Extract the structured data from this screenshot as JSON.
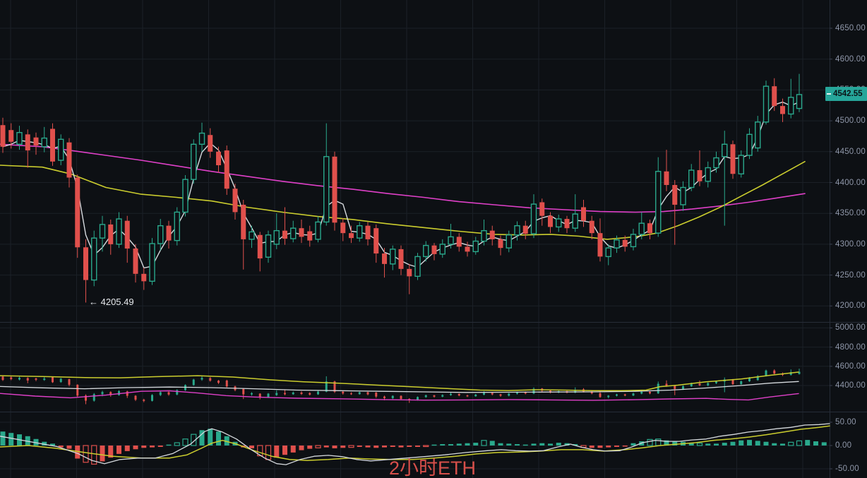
{
  "overlays": {
    "watermark": "2小时ETH",
    "low_annotation": "← 4205.49",
    "last_price": "4542.55"
  },
  "colors": {
    "background": "#0d1014",
    "grid": "#1b2027",
    "separator": "#262c37",
    "axis_line": "#262c37",
    "axis_text": "#8f97a9",
    "up": "#2aa98c",
    "down": "#e0504c",
    "ma_white": "#d6dade",
    "ma_yellow": "#cbcd2e",
    "ma_magenta": "#df40c8",
    "price_label_bg": "#26a69a",
    "price_label_text": "#0a1517",
    "watermark": "#e2534d",
    "annotation": "#e6e9ed"
  },
  "chart_data": {
    "type": "candlestick-multi-pane",
    "title": "2小时ETH",
    "timeframe": "2h",
    "symbol": "ETH",
    "last_price": 4542.55,
    "low_annotation_price": 4205.49,
    "panels": [
      {
        "name": "price",
        "ticks": [
          [
            4650,
            "4650.00"
          ],
          [
            4600,
            "4600.00"
          ],
          [
            4550,
            "4550.00"
          ],
          [
            4500,
            "4500.00"
          ],
          [
            4450,
            "4450.00"
          ],
          [
            4400,
            "4400.00"
          ],
          [
            4350,
            "4350.00"
          ],
          [
            4300,
            "4300.00"
          ],
          [
            4250,
            "4250.00"
          ],
          [
            4200,
            "4200.00"
          ]
        ]
      },
      {
        "name": "compressed-price",
        "ticks": [
          [
            5000,
            "5000.00"
          ],
          [
            4800,
            "4800.00"
          ],
          [
            4600,
            "4600.00"
          ],
          [
            4400,
            "4400.00"
          ]
        ]
      },
      {
        "name": "macd",
        "ticks": [
          [
            50,
            "50.00"
          ],
          [
            0,
            "0.00"
          ],
          [
            -50,
            "-50.00"
          ]
        ]
      }
    ],
    "candles_ohlc": [
      [
        4493,
        4505,
        4448,
        4458
      ],
      [
        4485,
        4496,
        4455,
        4466
      ],
      [
        4462,
        4492,
        4453,
        4481
      ],
      [
        4478,
        4486,
        4424,
        4452
      ],
      [
        4473,
        4481,
        4445,
        4460
      ],
      [
        4458,
        4490,
        4449,
        4472
      ],
      [
        4487,
        4496,
        4427,
        4434
      ],
      [
        4436,
        4478,
        4428,
        4470
      ],
      [
        4465,
        4472,
        4392,
        4408
      ],
      [
        4408,
        4413,
        4278,
        4295
      ],
      [
        4295,
        4308,
        4205.49,
        4242
      ],
      [
        4242,
        4322,
        4232,
        4310
      ],
      [
        4310,
        4346,
        4288,
        4332
      ],
      [
        4332,
        4340,
        4283,
        4300
      ],
      [
        4300,
        4352,
        4294,
        4341
      ],
      [
        4338,
        4346,
        4270,
        4293
      ],
      [
        4293,
        4300,
        4238,
        4252
      ],
      [
        4252,
        4262,
        4226,
        4240
      ],
      [
        4240,
        4310,
        4234,
        4301
      ],
      [
        4301,
        4341,
        4290,
        4330
      ],
      [
        4330,
        4338,
        4293,
        4306
      ],
      [
        4306,
        4360,
        4298,
        4352
      ],
      [
        4352,
        4412,
        4345,
        4405
      ],
      [
        4405,
        4470,
        4398,
        4462
      ],
      [
        4462,
        4497,
        4450,
        4480
      ],
      [
        4477,
        4488,
        4440,
        4450
      ],
      [
        4450,
        4458,
        4416,
        4428
      ],
      [
        4452,
        4460,
        4380,
        4390
      ],
      [
        4390,
        4398,
        4340,
        4352
      ],
      [
        4364,
        4372,
        4259,
        4308
      ],
      [
        4308,
        4330,
        4294,
        4320
      ],
      [
        4315,
        4320,
        4256,
        4277
      ],
      [
        4279,
        4322,
        4270,
        4315
      ],
      [
        4300,
        4350,
        4292,
        4322
      ],
      [
        4322,
        4360,
        4299,
        4309
      ],
      [
        4309,
        4338,
        4303,
        4326
      ],
      [
        4326,
        4340,
        4302,
        4312
      ],
      [
        4321,
        4330,
        4296,
        4306
      ],
      [
        4308,
        4345,
        4303,
        4336
      ],
      [
        4336,
        4496,
        4330,
        4442
      ],
      [
        4442,
        4450,
        4322,
        4335
      ],
      [
        4335,
        4342,
        4305,
        4318
      ],
      [
        4318,
        4330,
        4302,
        4310
      ],
      [
        4310,
        4336,
        4304,
        4330
      ],
      [
        4330,
        4336,
        4298,
        4308
      ],
      [
        4326,
        4332,
        4270,
        4285
      ],
      [
        4285,
        4294,
        4246,
        4268
      ],
      [
        4268,
        4298,
        4258,
        4292
      ],
      [
        4292,
        4298,
        4250,
        4260
      ],
      [
        4260,
        4268,
        4219,
        4248
      ],
      [
        4248,
        4286,
        4242,
        4280
      ],
      [
        4280,
        4305,
        4272,
        4298
      ],
      [
        4298,
        4302,
        4274,
        4284
      ],
      [
        4284,
        4308,
        4278,
        4300
      ],
      [
        4300,
        4333,
        4293,
        4312
      ],
      [
        4312,
        4318,
        4288,
        4296
      ],
      [
        4296,
        4304,
        4280,
        4288
      ],
      [
        4288,
        4312,
        4283,
        4305
      ],
      [
        4305,
        4340,
        4298,
        4322
      ],
      [
        4322,
        4330,
        4298,
        4308
      ],
      [
        4308,
        4314,
        4282,
        4294
      ],
      [
        4294,
        4322,
        4287,
        4315
      ],
      [
        4315,
        4337,
        4306,
        4330
      ],
      [
        4330,
        4338,
        4308,
        4317
      ],
      [
        4317,
        4381,
        4310,
        4365
      ],
      [
        4368,
        4374,
        4330,
        4346
      ],
      [
        4346,
        4352,
        4318,
        4328
      ],
      [
        4328,
        4348,
        4320,
        4341
      ],
      [
        4341,
        4346,
        4318,
        4326
      ],
      [
        4326,
        4381,
        4320,
        4349
      ],
      [
        4360,
        4372,
        4328,
        4338
      ],
      [
        4338,
        4346,
        4308,
        4318
      ],
      [
        4318,
        4342,
        4272,
        4280
      ],
      [
        4280,
        4300,
        4266,
        4294
      ],
      [
        4294,
        4314,
        4286,
        4307
      ],
      [
        4307,
        4314,
        4288,
        4296
      ],
      [
        4296,
        4325,
        4290,
        4316
      ],
      [
        4316,
        4352,
        4308,
        4334
      ],
      [
        4334,
        4340,
        4308,
        4318
      ],
      [
        4318,
        4441,
        4312,
        4418
      ],
      [
        4418,
        4453,
        4386,
        4396
      ],
      [
        4396,
        4404,
        4299,
        4364
      ],
      [
        4364,
        4402,
        4354,
        4392
      ],
      [
        4392,
        4430,
        4386,
        4420
      ],
      [
        4420,
        4452,
        4394,
        4402
      ],
      [
        4402,
        4434,
        4392,
        4424
      ],
      [
        4424,
        4450,
        4416,
        4440
      ],
      [
        4442,
        4484,
        4330,
        4462
      ],
      [
        4462,
        4468,
        4406,
        4414
      ],
      [
        4414,
        4452,
        4408,
        4444
      ],
      [
        4444,
        4488,
        4438,
        4478
      ],
      [
        4456,
        4508,
        4450,
        4498
      ],
      [
        4498,
        4565,
        4494,
        4556
      ],
      [
        4556,
        4569,
        4516,
        4524
      ],
      [
        4524,
        4536,
        4498,
        4511
      ],
      [
        4511,
        4568,
        4504,
        4538
      ],
      [
        4520,
        4576,
        4514,
        4542.55
      ]
    ],
    "ma_yellow_points": [
      [
        0,
        4428
      ],
      [
        60,
        4425
      ],
      [
        100,
        4414
      ],
      [
        150,
        4392
      ],
      [
        200,
        4381
      ],
      [
        250,
        4376
      ],
      [
        300,
        4370
      ],
      [
        350,
        4360
      ],
      [
        400,
        4352
      ],
      [
        450,
        4345
      ],
      [
        500,
        4340
      ],
      [
        550,
        4333
      ],
      [
        600,
        4327
      ],
      [
        650,
        4321
      ],
      [
        700,
        4316
      ],
      [
        740,
        4315
      ],
      [
        780,
        4316
      ],
      [
        820,
        4313
      ],
      [
        860,
        4308
      ],
      [
        900,
        4312
      ],
      [
        930,
        4318
      ],
      [
        960,
        4330
      ],
      [
        990,
        4344
      ],
      [
        1020,
        4360
      ],
      [
        1050,
        4378
      ],
      [
        1080,
        4396
      ],
      [
        1110,
        4415
      ],
      [
        1140,
        4434
      ]
    ],
    "ma_magenta_points": [
      [
        0,
        4462
      ],
      [
        60,
        4458
      ],
      [
        100,
        4452
      ],
      [
        150,
        4444
      ],
      [
        200,
        4436
      ],
      [
        250,
        4427
      ],
      [
        300,
        4418
      ],
      [
        350,
        4410
      ],
      [
        400,
        4402
      ],
      [
        450,
        4395
      ],
      [
        500,
        4389
      ],
      [
        550,
        4382
      ],
      [
        600,
        4376
      ],
      [
        650,
        4369
      ],
      [
        700,
        4364
      ],
      [
        750,
        4359
      ],
      [
        800,
        4356
      ],
      [
        850,
        4353
      ],
      [
        900,
        4352
      ],
      [
        940,
        4353
      ],
      [
        980,
        4357
      ],
      [
        1020,
        4362
      ],
      [
        1060,
        4368
      ],
      [
        1100,
        4375
      ],
      [
        1140,
        4382
      ]
    ],
    "mid_yellow_points": [
      [
        0,
        4502
      ],
      [
        60,
        4494
      ],
      [
        120,
        4482
      ],
      [
        170,
        4480
      ],
      [
        220,
        4492
      ],
      [
        280,
        4502
      ],
      [
        330,
        4488
      ],
      [
        380,
        4460
      ],
      [
        430,
        4438
      ],
      [
        480,
        4424
      ],
      [
        530,
        4406
      ],
      [
        580,
        4388
      ],
      [
        630,
        4370
      ],
      [
        680,
        4352
      ],
      [
        720,
        4348
      ],
      [
        760,
        4356
      ],
      [
        800,
        4352
      ],
      [
        840,
        4346
      ],
      [
        880,
        4346
      ],
      [
        915,
        4352
      ],
      [
        935,
        4388
      ],
      [
        960,
        4404
      ],
      [
        1000,
        4438
      ],
      [
        1050,
        4468
      ],
      [
        1090,
        4506
      ],
      [
        1131,
        4540
      ]
    ],
    "mid_white_points": [
      [
        0,
        4390
      ],
      [
        60,
        4376
      ],
      [
        120,
        4366
      ],
      [
        180,
        4378
      ],
      [
        240,
        4384
      ],
      [
        300,
        4378
      ],
      [
        360,
        4366
      ],
      [
        420,
        4352
      ],
      [
        480,
        4346
      ],
      [
        540,
        4340
      ],
      [
        600,
        4334
      ],
      [
        660,
        4328
      ],
      [
        720,
        4330
      ],
      [
        780,
        4332
      ],
      [
        840,
        4334
      ],
      [
        900,
        4340
      ],
      [
        950,
        4352
      ],
      [
        1000,
        4374
      ],
      [
        1050,
        4400
      ],
      [
        1090,
        4424
      ],
      [
        1131,
        4442
      ]
    ],
    "mid_magenta_points": [
      [
        0,
        4318
      ],
      [
        50,
        4290
      ],
      [
        100,
        4272
      ],
      [
        150,
        4300
      ],
      [
        200,
        4340
      ],
      [
        240,
        4345
      ],
      [
        280,
        4322
      ],
      [
        320,
        4295
      ],
      [
        360,
        4280
      ],
      [
        420,
        4268
      ],
      [
        480,
        4262
      ],
      [
        540,
        4254
      ],
      [
        600,
        4248
      ],
      [
        660,
        4250
      ],
      [
        720,
        4254
      ],
      [
        780,
        4250
      ],
      [
        840,
        4246
      ],
      [
        900,
        4252
      ],
      [
        950,
        4260
      ],
      [
        1000,
        4266
      ],
      [
        1030,
        4256
      ],
      [
        1060,
        4250
      ],
      [
        1090,
        4280
      ],
      [
        1131,
        4316
      ]
    ],
    "macd_hist": [
      30,
      27,
      24,
      20,
      14,
      8,
      4,
      -4,
      -7,
      -28,
      -36,
      -40,
      -34,
      -26,
      -18,
      -12,
      -8,
      -5,
      -4,
      -3,
      2,
      6,
      14,
      24,
      33,
      36,
      30,
      20,
      8,
      -4,
      -6,
      -22,
      -30,
      -26,
      -20,
      -15,
      -10,
      -7,
      -5,
      -4,
      -6,
      -5,
      -4,
      -3,
      -4,
      -5,
      -4,
      -3,
      -4,
      -3,
      -3,
      -2,
      2,
      3,
      3,
      4,
      5,
      6,
      11,
      10,
      5,
      4,
      3,
      2,
      4,
      5,
      4,
      6,
      5,
      3,
      -4,
      -5,
      -5,
      -4,
      -3,
      -2,
      5,
      9,
      13,
      14,
      11,
      9,
      8,
      6,
      5,
      4,
      4,
      6,
      8,
      11,
      12,
      10,
      8,
      5,
      4,
      7,
      10,
      12,
      9,
      7
    ],
    "macd_hist_hollow": [
      10,
      11,
      21,
      22,
      23,
      31,
      32,
      38,
      42,
      51,
      58,
      70,
      78,
      79,
      84,
      95,
      96
    ],
    "macd_white_points": [
      [
        0,
        20
      ],
      [
        40,
        9
      ],
      [
        80,
        -2
      ],
      [
        110,
        -17
      ],
      [
        130,
        -32
      ],
      [
        148,
        -39
      ],
      [
        170,
        -30
      ],
      [
        195,
        -27
      ],
      [
        220,
        -27
      ],
      [
        245,
        -17
      ],
      [
        270,
        3
      ],
      [
        290,
        30
      ],
      [
        300,
        36
      ],
      [
        315,
        29
      ],
      [
        335,
        14
      ],
      [
        355,
        -8
      ],
      [
        375,
        -27
      ],
      [
        392,
        -39
      ],
      [
        405,
        -41
      ],
      [
        425,
        -30
      ],
      [
        445,
        -23
      ],
      [
        465,
        -21
      ],
      [
        485,
        -24
      ],
      [
        505,
        -30
      ],
      [
        525,
        -33
      ],
      [
        550,
        -30
      ],
      [
        575,
        -27
      ],
      [
        600,
        -24
      ],
      [
        630,
        -20
      ],
      [
        660,
        -15
      ],
      [
        690,
        -11
      ],
      [
        710,
        -9
      ],
      [
        730,
        -11
      ],
      [
        750,
        -12
      ],
      [
        770,
        -11
      ],
      [
        790,
        -3
      ],
      [
        808,
        3
      ],
      [
        822,
        -3
      ],
      [
        840,
        -9
      ],
      [
        858,
        -12
      ],
      [
        878,
        -11
      ],
      [
        895,
        -3
      ],
      [
        910,
        6
      ],
      [
        928,
        11
      ],
      [
        945,
        9
      ],
      [
        962,
        9
      ],
      [
        980,
        12
      ],
      [
        1000,
        14
      ],
      [
        1020,
        20
      ],
      [
        1040,
        24
      ],
      [
        1060,
        29
      ],
      [
        1080,
        32
      ],
      [
        1100,
        36
      ],
      [
        1120,
        39
      ],
      [
        1140,
        44
      ],
      [
        1160,
        45
      ],
      [
        1175,
        47
      ]
    ],
    "macd_yellow_points": [
      [
        0,
        -3
      ],
      [
        40,
        0
      ],
      [
        80,
        -6
      ],
      [
        120,
        -15
      ],
      [
        160,
        -23
      ],
      [
        200,
        -27
      ],
      [
        240,
        -27
      ],
      [
        265,
        -20
      ],
      [
        285,
        -6
      ],
      [
        300,
        5
      ],
      [
        315,
        11
      ],
      [
        335,
        3
      ],
      [
        360,
        -11
      ],
      [
        385,
        -23
      ],
      [
        410,
        -30
      ],
      [
        435,
        -32
      ],
      [
        465,
        -30
      ],
      [
        495,
        -27
      ],
      [
        525,
        -29
      ],
      [
        555,
        -30
      ],
      [
        585,
        -30
      ],
      [
        615,
        -27
      ],
      [
        645,
        -23
      ],
      [
        675,
        -18
      ],
      [
        705,
        -15
      ],
      [
        735,
        -14
      ],
      [
        765,
        -12
      ],
      [
        795,
        -9
      ],
      [
        825,
        -9
      ],
      [
        855,
        -12
      ],
      [
        885,
        -9
      ],
      [
        910,
        -5
      ],
      [
        935,
        0
      ],
      [
        960,
        3
      ],
      [
        985,
        6
      ],
      [
        1010,
        11
      ],
      [
        1035,
        14
      ],
      [
        1060,
        18
      ],
      [
        1085,
        23
      ],
      [
        1110,
        29
      ],
      [
        1135,
        35
      ],
      [
        1160,
        39
      ],
      [
        1175,
        42
      ]
    ]
  }
}
